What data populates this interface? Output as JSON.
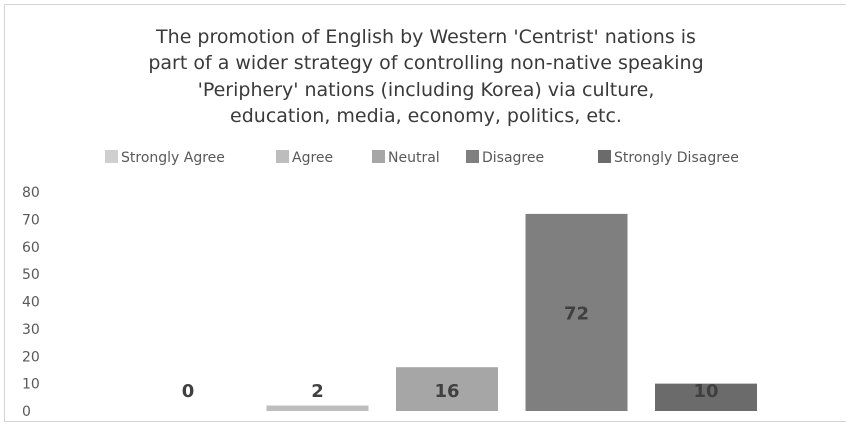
{
  "chart_data": {
    "type": "bar",
    "title_lines": [
      "The promotion of English by Western 'Centrist' nations is",
      "part of a wider strategy of controlling non-native speaking",
      "'Periphery' nations (including Korea) via culture,",
      "education, media, economy, politics, etc."
    ],
    "categories": [
      "Strongly Agree",
      "Agree",
      "Neutral",
      "Disagree",
      "Strongly Disagree"
    ],
    "values": [
      0,
      2,
      16,
      72,
      10
    ],
    "colors": [
      "#cfcfcf",
      "#bdbdbd",
      "#a6a6a6",
      "#7f7f7f",
      "#6b6b6b"
    ],
    "legend_position": "top",
    "ylim": [
      0,
      80
    ],
    "yticks": [
      0,
      10,
      20,
      30,
      40,
      50,
      60,
      70,
      80
    ],
    "grid": false,
    "data_labels": [
      "0",
      "2",
      "16",
      "72",
      "10"
    ]
  }
}
